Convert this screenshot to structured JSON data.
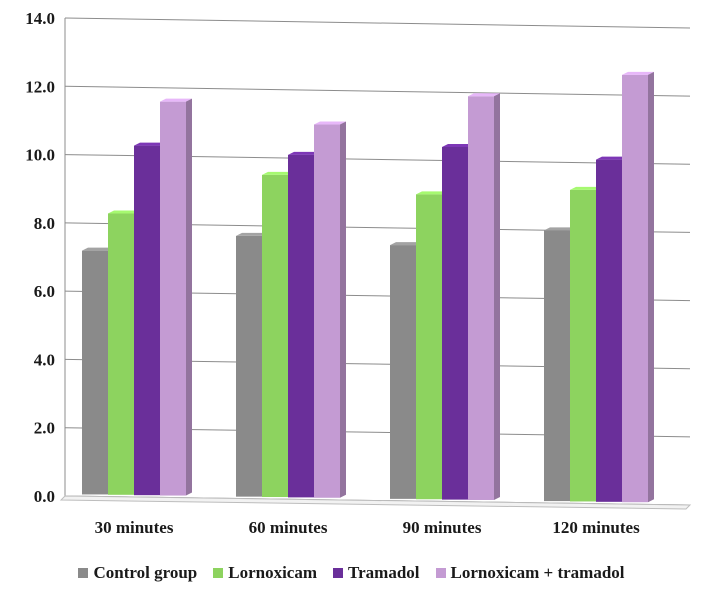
{
  "chart_data": {
    "type": "bar",
    "title": "",
    "xlabel": "",
    "ylabel": "",
    "categories": [
      "30 minutes",
      "60 minutes",
      "90 minutes",
      "120 minutes"
    ],
    "series": [
      {
        "name": "Control group",
        "color": "#8a8a8a",
        "values": [
          7.2,
          7.7,
          7.5,
          8.0
        ]
      },
      {
        "name": "Lornoxicam",
        "color": "#8dd35f",
        "values": [
          8.3,
          9.5,
          9.0,
          9.2
        ]
      },
      {
        "name": "Tramadol",
        "color": "#6a2f9a",
        "values": [
          10.3,
          10.1,
          10.4,
          10.1
        ]
      },
      {
        "name": "Lornoxicam + tramadol",
        "color": "#c49bd3",
        "values": [
          11.6,
          11.0,
          11.9,
          12.6
        ]
      }
    ],
    "ylim": [
      0,
      14
    ],
    "yticks": [
      "0.0",
      "2.0",
      "4.0",
      "6.0",
      "8.0",
      "10.0",
      "12.0",
      "14.0"
    ],
    "grid": true,
    "legend_position": "bottom",
    "style": "3d-clustered-column"
  }
}
